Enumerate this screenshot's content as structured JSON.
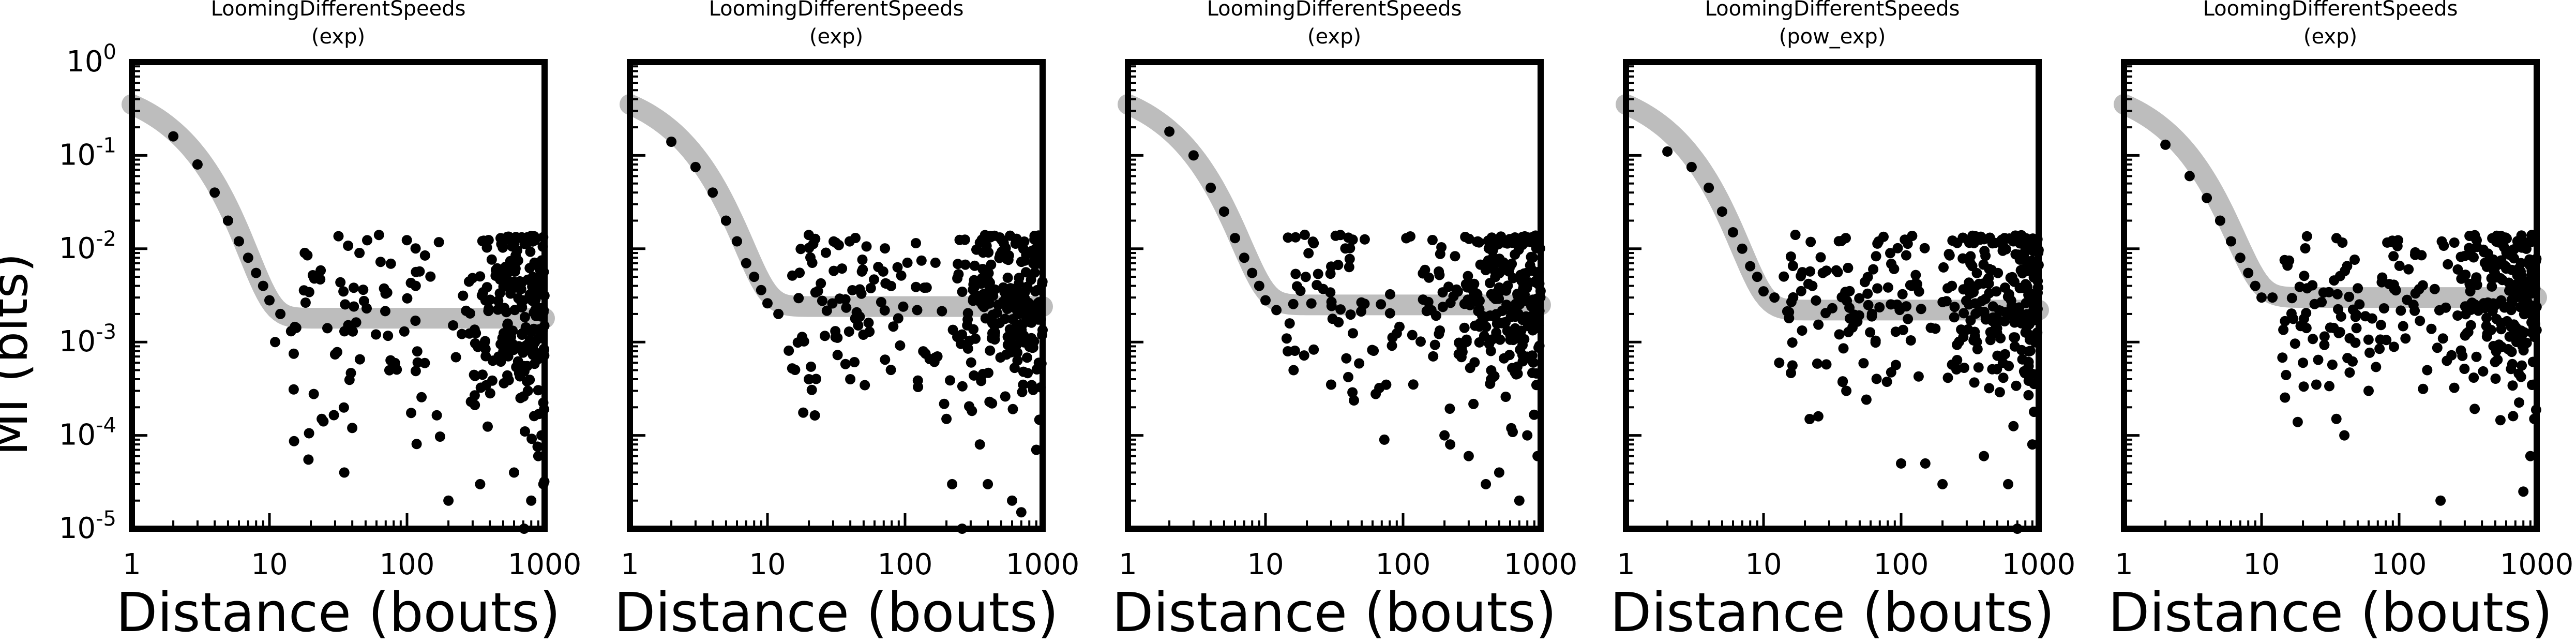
{
  "figure": {
    "ylabel": "MI (bits)",
    "colors": {
      "points": "#000000",
      "fit": "#bdbdbd",
      "frame": "#000000"
    }
  },
  "chart_data": [
    {
      "type": "scatter",
      "title": "LoomingDifferentSpeeds",
      "subtitle": "(exp)",
      "xlabel": "Distance (bouts)",
      "ylabel": "MI (bits)",
      "xscale": "log",
      "yscale": "log",
      "xlim": [
        1,
        1000
      ],
      "ylim": [
        1e-05,
        1
      ],
      "xticks": [
        "1",
        "10",
        "100",
        "1000"
      ],
      "yticks": [
        "10^-5",
        "10^-4",
        "10^-3",
        "10^-2",
        "10^-1",
        "10^0"
      ],
      "grid": false,
      "fit_plateau": 0.0018,
      "points_head": [
        [
          2,
          0.16
        ],
        [
          3,
          0.08
        ],
        [
          4,
          0.04
        ],
        [
          5,
          0.02
        ],
        [
          6,
          0.012
        ],
        [
          7,
          0.008
        ],
        [
          8,
          0.0055
        ],
        [
          9,
          0.004
        ],
        [
          10,
          0.0028
        ],
        [
          11,
          0.001
        ],
        [
          12,
          0.002
        ]
      ],
      "points_tail": [
        [
          24,
          0.00015
        ],
        [
          35,
          4e-05
        ],
        [
          40,
          0.00012
        ],
        [
          200,
          2e-05
        ],
        [
          340,
          3e-05
        ],
        [
          600,
          4e-05
        ],
        [
          710,
          1e-05
        ],
        [
          800,
          2e-05
        ],
        [
          900,
          6e-05
        ],
        [
          950,
          0.0001
        ],
        [
          980,
          3e-05
        ]
      ],
      "cloud": {
        "start": 14,
        "dense": 220,
        "end": 1000,
        "n": 300,
        "center_log": -2.7,
        "spread_log": 0.55,
        "low_log": -4.6
      }
    },
    {
      "type": "scatter",
      "title": "LoomingDifferentSpeeds",
      "subtitle": "(exp)",
      "xlabel": "Distance (bouts)",
      "ylabel": "MI (bits)",
      "xscale": "log",
      "yscale": "log",
      "xlim": [
        1,
        1000
      ],
      "ylim": [
        1e-05,
        1
      ],
      "xticks": [
        "1",
        "10",
        "100",
        "1000"
      ],
      "yticks": [
        "10^-5",
        "10^-4",
        "10^-3",
        "10^-2",
        "10^-1",
        "10^0"
      ],
      "grid": false,
      "fit_plateau": 0.0024,
      "points_head": [
        [
          2,
          0.14
        ],
        [
          3,
          0.075
        ],
        [
          4,
          0.04
        ],
        [
          5,
          0.02
        ],
        [
          6,
          0.012
        ],
        [
          7,
          0.007
        ],
        [
          8,
          0.005
        ],
        [
          9,
          0.0036
        ],
        [
          10,
          0.0026
        ],
        [
          12,
          0.002
        ]
      ],
      "points_tail": [
        [
          20,
          0.0004
        ],
        [
          40,
          0.0004
        ],
        [
          200,
          0.00015
        ],
        [
          220,
          3e-05
        ],
        [
          260,
          1e-05
        ],
        [
          350,
          8e-05
        ],
        [
          400,
          3e-05
        ],
        [
          600,
          2e-05
        ],
        [
          700,
          1.5e-05
        ],
        [
          900,
          7e-05
        ]
      ],
      "cloud": {
        "start": 14,
        "dense": 200,
        "end": 1000,
        "n": 320,
        "center_log": -2.6,
        "spread_log": 0.5,
        "low_log": -4.4
      }
    },
    {
      "type": "scatter",
      "title": "LoomingDifferentSpeeds",
      "subtitle": "(exp)",
      "xlabel": "Distance (bouts)",
      "ylabel": "MI (bits)",
      "xscale": "log",
      "yscale": "log",
      "xlim": [
        1,
        1000
      ],
      "ylim": [
        1e-05,
        1
      ],
      "xticks": [
        "1",
        "10",
        "100",
        "1000"
      ],
      "yticks": [
        "10^-5",
        "10^-4",
        "10^-3",
        "10^-2",
        "10^-1",
        "10^0"
      ],
      "grid": false,
      "fit_plateau": 0.0025,
      "points_head": [
        [
          2,
          0.18
        ],
        [
          3,
          0.1
        ],
        [
          4,
          0.045
        ],
        [
          5,
          0.025
        ],
        [
          6,
          0.013
        ],
        [
          7,
          0.008
        ],
        [
          8,
          0.0055
        ],
        [
          9,
          0.004
        ],
        [
          10,
          0.0028
        ],
        [
          12,
          0.0022
        ]
      ],
      "points_tail": [
        [
          16,
          0.0005
        ],
        [
          30,
          0.00035
        ],
        [
          200,
          0.0001
        ],
        [
          220,
          8e-05
        ],
        [
          300,
          6e-05
        ],
        [
          400,
          3e-05
        ],
        [
          500,
          4e-05
        ],
        [
          700,
          2e-05
        ],
        [
          800,
          0.0001
        ],
        [
          950,
          6e-05
        ]
      ],
      "cloud": {
        "start": 14,
        "dense": 200,
        "end": 1000,
        "n": 320,
        "center_log": -2.6,
        "spread_log": 0.5,
        "low_log": -4.3
      }
    },
    {
      "type": "scatter",
      "title": "LoomingDifferentSpeeds",
      "subtitle": "(pow_exp)",
      "xlabel": "Distance (bouts)",
      "ylabel": "MI (bits)",
      "xscale": "log",
      "yscale": "log",
      "xlim": [
        1,
        1000
      ],
      "ylim": [
        1e-05,
        1
      ],
      "xticks": [
        "1",
        "10",
        "100",
        "1000"
      ],
      "yticks": [
        "10^-5",
        "10^-4",
        "10^-3",
        "10^-2",
        "10^-1",
        "10^0"
      ],
      "grid": false,
      "fit_plateau": 0.0022,
      "points_head": [
        [
          2,
          0.11
        ],
        [
          3,
          0.075
        ],
        [
          4,
          0.045
        ],
        [
          5,
          0.025
        ],
        [
          6,
          0.015
        ],
        [
          7,
          0.01
        ],
        [
          8,
          0.0065
        ],
        [
          9,
          0.005
        ],
        [
          10,
          0.0035
        ],
        [
          12,
          0.003
        ]
      ],
      "points_tail": [
        [
          13,
          0.0006
        ],
        [
          25,
          0.00016
        ],
        [
          40,
          0.0003
        ],
        [
          100,
          5e-05
        ],
        [
          150,
          5e-05
        ],
        [
          200,
          3e-05
        ],
        [
          400,
          6e-05
        ],
        [
          600,
          3e-05
        ],
        [
          700,
          1e-05
        ],
        [
          900,
          8e-05
        ]
      ],
      "cloud": {
        "start": 14,
        "dense": 150,
        "end": 1000,
        "n": 320,
        "center_log": -2.5,
        "spread_log": 0.5,
        "low_log": -4.3
      }
    },
    {
      "type": "scatter",
      "title": "LoomingDifferentSpeeds",
      "subtitle": "(exp)",
      "xlabel": "Distance (bouts)",
      "ylabel": "MI (bits)",
      "xscale": "log",
      "yscale": "log",
      "xlim": [
        1,
        1000
      ],
      "ylim": [
        1e-05,
        1
      ],
      "xticks": [
        "1",
        "10",
        "100",
        "1000"
      ],
      "yticks": [
        "10^-5",
        "10^-4",
        "10^-3",
        "10^-2",
        "10^-1",
        "10^0"
      ],
      "grid": false,
      "fit_plateau": 0.003,
      "points_head": [
        [
          2,
          0.13
        ],
        [
          3,
          0.06
        ],
        [
          4,
          0.035
        ],
        [
          5,
          0.02
        ],
        [
          6,
          0.012
        ],
        [
          7,
          0.008
        ],
        [
          8,
          0.0055
        ],
        [
          9,
          0.004
        ],
        [
          10,
          0.003
        ],
        [
          12,
          0.003
        ]
      ],
      "points_tail": [
        [
          20,
          0.0006
        ],
        [
          25,
          0.00035
        ],
        [
          35,
          0.00015
        ],
        [
          40,
          0.0001
        ],
        [
          60,
          0.0003
        ],
        [
          160,
          0.0005
        ],
        [
          200,
          2e-05
        ],
        [
          800,
          2.5e-05
        ],
        [
          900,
          6e-05
        ],
        [
          960,
          0.00015
        ]
      ],
      "cloud": {
        "start": 14,
        "dense": 150,
        "end": 1000,
        "n": 320,
        "center_log": -2.5,
        "spread_log": 0.5,
        "low_log": -4.2
      }
    }
  ]
}
